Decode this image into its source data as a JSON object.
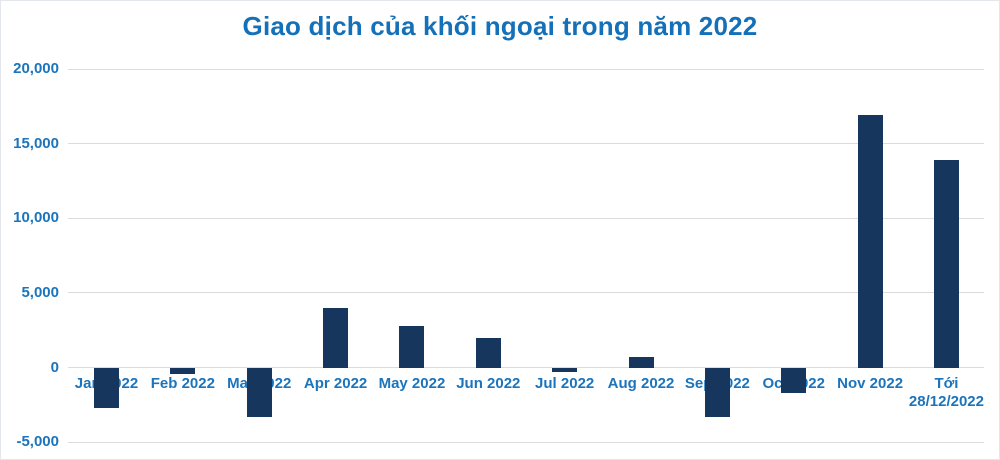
{
  "title": "Giao dịch của khối ngoại trong năm 2022",
  "colors": {
    "title": "#1470b8",
    "axis_label": "#1b74bc",
    "bar": "#16365e",
    "gridline": "#dbdbdb",
    "background": "#ffffff",
    "border": "#e3e6ea"
  },
  "chart_data": {
    "type": "bar",
    "title": "Giao dịch của khối ngoại trong năm 2022",
    "categories": [
      "Jan 2022",
      "Feb 2022",
      "Mar 2022",
      "Apr 2022",
      "May 2022",
      "Jun 2022",
      "Jul 2022",
      "Aug 2022",
      "Sep 2022",
      "Oct 2022",
      "Nov 2022",
      "Tới\n28/12/2022"
    ],
    "values": [
      -2700,
      -400,
      -3300,
      4000,
      2800,
      2000,
      -300,
      700,
      -3300,
      -1700,
      16900,
      13900
    ],
    "xlabel": "",
    "ylabel": "",
    "ylim": [
      -5000,
      20000
    ],
    "y_ticks": [
      20000,
      15000,
      10000,
      5000,
      0,
      -5000
    ],
    "y_tick_labels": [
      "20,000",
      "15,000",
      "10,000",
      "5,000",
      "0",
      "-5,000"
    ],
    "grid": "horizontal gridlines only",
    "legend": "none",
    "bar_color": "#16365e",
    "single_series": true
  }
}
